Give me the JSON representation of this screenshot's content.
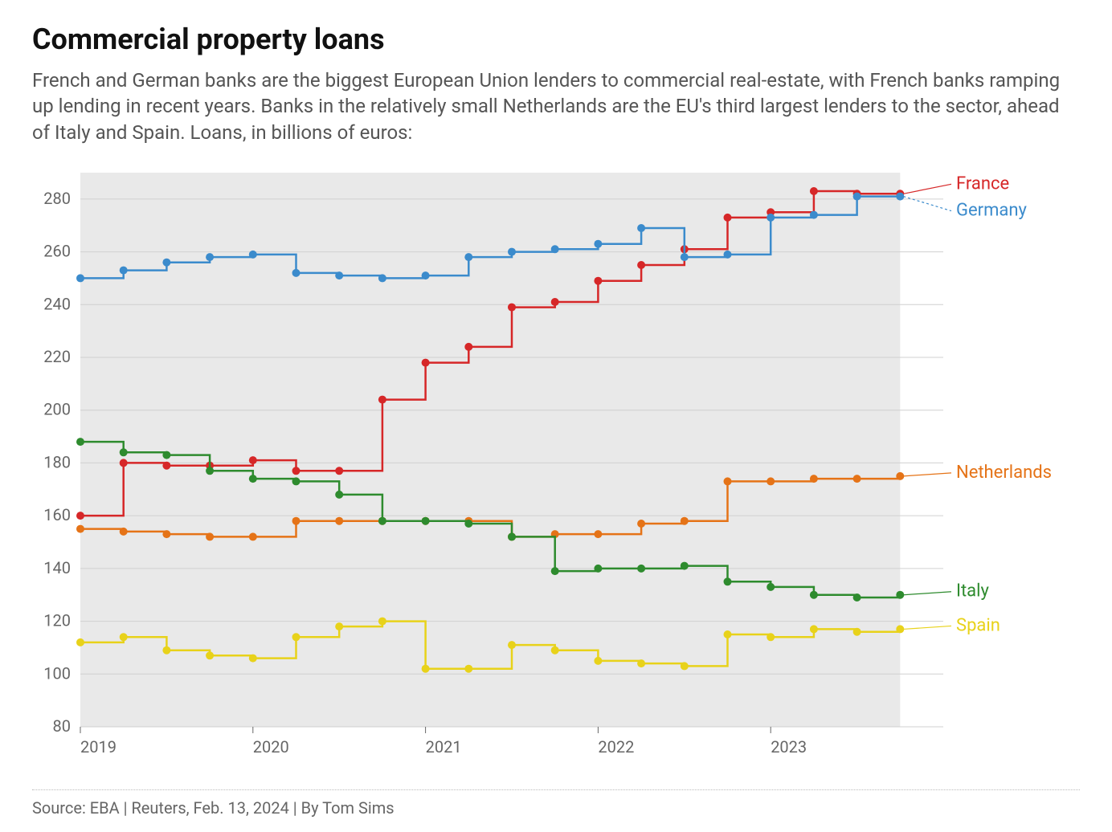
{
  "title": "Commercial property loans",
  "subtitle": "French and German banks are the biggest European Union lenders to commercial real-estate, with French banks ramping up lending in recent years. Banks in the relatively small Netherlands are the EU's third largest lenders to the sector, ahead of Italy and Spain. Loans, in billions of euros:",
  "source": "Source: EBA | Reuters, Feb. 13, 2024 | By Tom Sims",
  "chart": {
    "type": "step-line",
    "background_color": "#ffffff",
    "plot_background": "#e9e9e9",
    "grid_color": "#d0d0d0",
    "axis_text_color": "#666666",
    "axis_font_size": 20,
    "label_font_size": 22,
    "line_width": 2.5,
    "marker_radius": 5,
    "y": {
      "min": 80,
      "max": 290,
      "ticks": [
        80,
        100,
        120,
        140,
        160,
        180,
        200,
        220,
        240,
        260,
        280
      ]
    },
    "x": {
      "min": 0,
      "max": 20,
      "year_ticks": [
        {
          "idx": 0,
          "label": "2019"
        },
        {
          "idx": 4,
          "label": "2020"
        },
        {
          "idx": 8,
          "label": "2021"
        },
        {
          "idx": 12,
          "label": "2022"
        },
        {
          "idx": 16,
          "label": "2023"
        }
      ]
    },
    "series": [
      {
        "name": "France",
        "color": "#d62728",
        "label_offset_y": -8,
        "values": [
          160,
          180,
          179,
          179,
          181,
          177,
          177,
          204,
          218,
          224,
          239,
          241,
          249,
          255,
          261,
          273,
          275,
          283,
          282,
          282
        ]
      },
      {
        "name": "Germany",
        "color": "#3b8bcc",
        "label_offset_y": 22,
        "leader_dash": true,
        "values": [
          250,
          253,
          256,
          258,
          259,
          252,
          251,
          250,
          251,
          258,
          260,
          261,
          263,
          269,
          258,
          259,
          273,
          274,
          281,
          281
        ]
      },
      {
        "name": "Netherlands",
        "color": "#e57317",
        "label_offset_y": 0,
        "values": [
          155,
          154,
          153,
          152,
          152,
          158,
          158,
          158,
          158,
          158,
          152,
          153,
          153,
          157,
          158,
          173,
          173,
          174,
          174,
          175
        ]
      },
      {
        "name": "Italy",
        "color": "#2e8b2e",
        "label_offset_y": 0,
        "values": [
          188,
          184,
          183,
          177,
          174,
          173,
          168,
          158,
          158,
          157,
          152,
          139,
          140,
          140,
          141,
          135,
          133,
          130,
          129,
          130
        ]
      },
      {
        "name": "Spain",
        "color": "#e8d21a",
        "label_offset_y": 0,
        "values": [
          112,
          114,
          109,
          107,
          106,
          114,
          118,
          120,
          102,
          102,
          111,
          109,
          105,
          104,
          103,
          115,
          114,
          117,
          116,
          117
        ]
      }
    ]
  }
}
